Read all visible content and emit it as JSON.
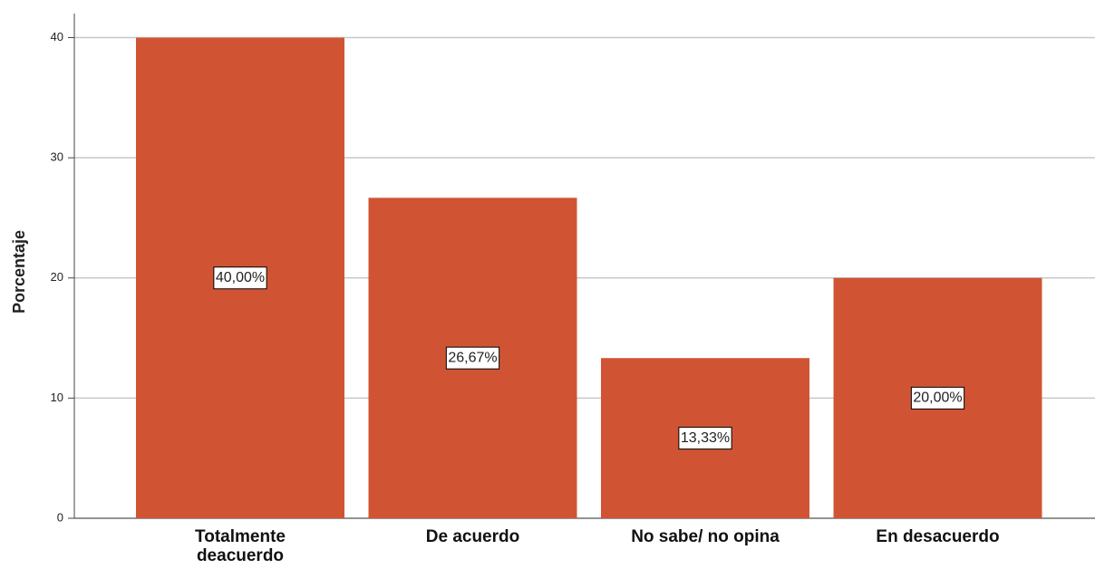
{
  "chart_data": {
    "type": "bar",
    "y_label": "Porcentaje",
    "categories": [
      "Totalmente\ndeacuerdo",
      "De acuerdo",
      "No sabe/ no opina",
      "En desacuerdo"
    ],
    "values": [
      40,
      26.67,
      13.33,
      20
    ],
    "value_labels": [
      "40,00%",
      "26,67%",
      "13,33%",
      "20,00%"
    ],
    "color": "#d05434",
    "ylim": [
      0,
      42
    ],
    "yticks": [
      0,
      10,
      20,
      30,
      40
    ],
    "grid": true
  }
}
